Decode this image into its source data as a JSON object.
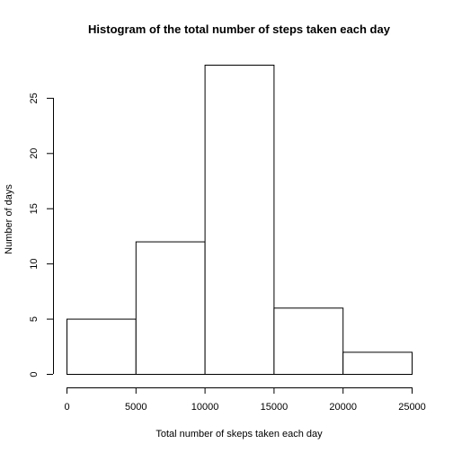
{
  "chart_data": {
    "type": "bar",
    "title": "Histogram of the total number of steps taken each day",
    "xlabel": "Total number of skeps taken each day",
    "ylabel": "Number of days",
    "bins": [
      {
        "from": 0,
        "to": 5000,
        "count": 5
      },
      {
        "from": 5000,
        "to": 10000,
        "count": 12
      },
      {
        "from": 10000,
        "to": 15000,
        "count": 28
      },
      {
        "from": 15000,
        "to": 20000,
        "count": 6
      },
      {
        "from": 20000,
        "to": 25000,
        "count": 2
      }
    ],
    "xlim": [
      0,
      25000
    ],
    "ylim": [
      0,
      28
    ],
    "x_ticks": [
      0,
      5000,
      10000,
      15000,
      20000,
      25000
    ],
    "x_tick_labels": [
      "0",
      "5000",
      "10000",
      "15000",
      "20000",
      "25000"
    ],
    "y_ticks": [
      0,
      5,
      10,
      15,
      20,
      25
    ],
    "y_tick_labels": [
      "0",
      "5",
      "10",
      "15",
      "20",
      "25"
    ],
    "grid": false,
    "legend": "none",
    "colors": {
      "bar_fill": "#ffffff",
      "bar_stroke": "#000000",
      "background": "#ffffff"
    }
  }
}
